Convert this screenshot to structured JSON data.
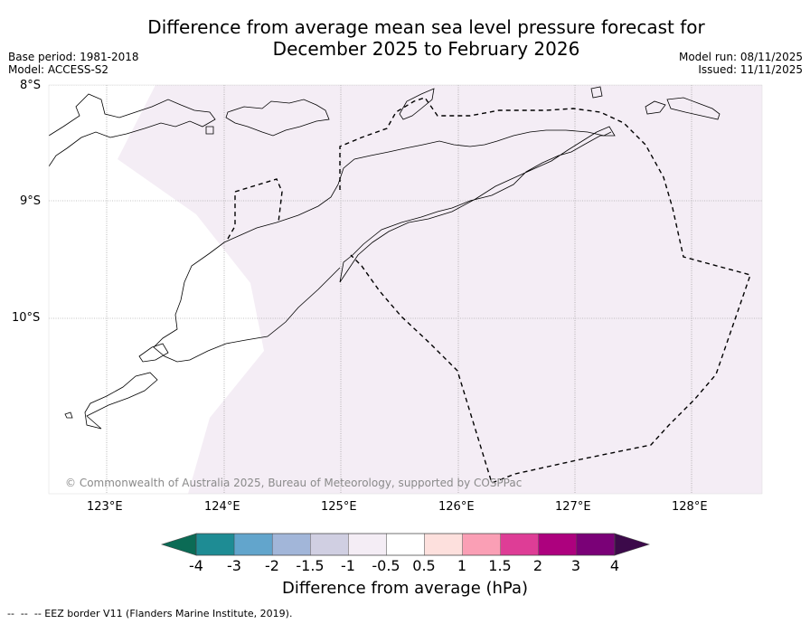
{
  "header": {
    "title": "Difference from average mean sea level pressure forecast for\nDecember 2025 to February 2026",
    "base_period": "Base period: 1981-2018",
    "model": "Model: ACCESS-S2",
    "model_run": "Model run: 08/11/2025",
    "issued": "Issued: 11/11/2025"
  },
  "map": {
    "lat_labels": [
      "8°S",
      "9°S",
      "10°S"
    ],
    "lon_labels": [
      "123°E",
      "124°E",
      "125°E",
      "126°E",
      "127°E",
      "128°E"
    ],
    "anomaly_fill_color": "#f4edf5",
    "copyright": "© Commonwealth of Australia 2025, Bureau of Meteorology, supported by COSPPac"
  },
  "colorbar": {
    "title": "Difference from average (hPa)",
    "tick_labels": [
      "-4",
      "-3",
      "-2",
      "-1.5",
      "-1",
      "-0.5",
      "0.5",
      "1",
      "1.5",
      "2",
      "3",
      "4"
    ],
    "under_color": "#0b6b55",
    "over_color": "#3c0a4a",
    "colors": [
      "#1e8c94",
      "#62a5cc",
      "#a2b6d9",
      "#d0cfe2",
      "#f4edf5",
      "#ffffff",
      "#fde0dd",
      "#fa9fb5",
      "#de3d96",
      "#ad017e",
      "#7a0177"
    ]
  },
  "legend": {
    "eez_note": "--  --  -- EEZ border V11 (Flanders Marine Institute, 2019)."
  }
}
